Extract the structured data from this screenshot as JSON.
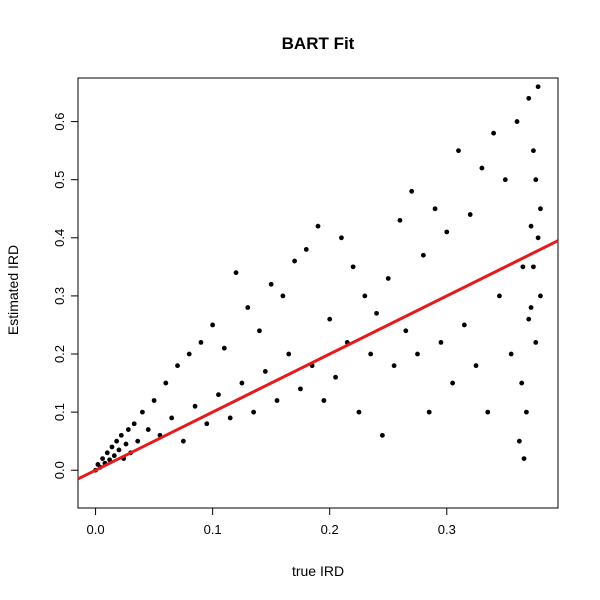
{
  "chart_data": {
    "type": "scatter",
    "title": "BART Fit",
    "xlabel": "true IRD",
    "ylabel": "Estimated IRD",
    "xlim": [
      -0.015,
      0.395
    ],
    "ylim": [
      -0.065,
      0.675
    ],
    "x_ticks": [
      0.0,
      0.1,
      0.2,
      0.3
    ],
    "y_ticks": [
      0.0,
      0.1,
      0.2,
      0.3,
      0.4,
      0.5,
      0.6
    ],
    "x_tick_labels": [
      "0.0",
      "0.1",
      "0.2",
      "0.3"
    ],
    "y_tick_labels": [
      "0.0",
      "0.1",
      "0.2",
      "0.3",
      "0.4",
      "0.5",
      "0.6"
    ],
    "grid": false,
    "point_color": "#000000",
    "fit_line": {
      "color": "#e41a1c",
      "intercept": 0.0,
      "slope": 1.0
    },
    "series": [
      {
        "points": [
          [
            0.0,
            0.0
          ],
          [
            0.002,
            0.01
          ],
          [
            0.004,
            0.005
          ],
          [
            0.006,
            0.02
          ],
          [
            0.008,
            0.012
          ],
          [
            0.01,
            0.03
          ],
          [
            0.012,
            0.018
          ],
          [
            0.014,
            0.04
          ],
          [
            0.016,
            0.025
          ],
          [
            0.018,
            0.05
          ],
          [
            0.02,
            0.035
          ],
          [
            0.022,
            0.06
          ],
          [
            0.024,
            0.02
          ],
          [
            0.026,
            0.045
          ],
          [
            0.028,
            0.07
          ],
          [
            0.03,
            0.03
          ],
          [
            0.033,
            0.08
          ],
          [
            0.036,
            0.05
          ],
          [
            0.04,
            0.1
          ],
          [
            0.045,
            0.07
          ],
          [
            0.05,
            0.12
          ],
          [
            0.055,
            0.06
          ],
          [
            0.06,
            0.15
          ],
          [
            0.065,
            0.09
          ],
          [
            0.07,
            0.18
          ],
          [
            0.075,
            0.05
          ],
          [
            0.08,
            0.2
          ],
          [
            0.085,
            0.11
          ],
          [
            0.09,
            0.22
          ],
          [
            0.095,
            0.08
          ],
          [
            0.1,
            0.25
          ],
          [
            0.105,
            0.13
          ],
          [
            0.11,
            0.21
          ],
          [
            0.115,
            0.09
          ],
          [
            0.12,
            0.34
          ],
          [
            0.125,
            0.15
          ],
          [
            0.13,
            0.28
          ],
          [
            0.135,
            0.1
          ],
          [
            0.14,
            0.24
          ],
          [
            0.145,
            0.17
          ],
          [
            0.15,
            0.32
          ],
          [
            0.155,
            0.12
          ],
          [
            0.16,
            0.3
          ],
          [
            0.165,
            0.2
          ],
          [
            0.17,
            0.36
          ],
          [
            0.175,
            0.14
          ],
          [
            0.18,
            0.38
          ],
          [
            0.185,
            0.18
          ],
          [
            0.19,
            0.42
          ],
          [
            0.195,
            0.12
          ],
          [
            0.2,
            0.26
          ],
          [
            0.205,
            0.16
          ],
          [
            0.21,
            0.4
          ],
          [
            0.215,
            0.22
          ],
          [
            0.22,
            0.35
          ],
          [
            0.225,
            0.1
          ],
          [
            0.23,
            0.3
          ],
          [
            0.235,
            0.2
          ],
          [
            0.24,
            0.27
          ],
          [
            0.245,
            0.06
          ],
          [
            0.25,
            0.33
          ],
          [
            0.255,
            0.18
          ],
          [
            0.26,
            0.43
          ],
          [
            0.265,
            0.24
          ],
          [
            0.27,
            0.48
          ],
          [
            0.275,
            0.2
          ],
          [
            0.28,
            0.37
          ],
          [
            0.285,
            0.1
          ],
          [
            0.29,
            0.45
          ],
          [
            0.295,
            0.22
          ],
          [
            0.3,
            0.41
          ],
          [
            0.305,
            0.15
          ],
          [
            0.31,
            0.55
          ],
          [
            0.315,
            0.25
          ],
          [
            0.32,
            0.44
          ],
          [
            0.325,
            0.18
          ],
          [
            0.33,
            0.52
          ],
          [
            0.335,
            0.1
          ],
          [
            0.34,
            0.58
          ],
          [
            0.345,
            0.3
          ],
          [
            0.35,
            0.5
          ],
          [
            0.355,
            0.2
          ],
          [
            0.36,
            0.6
          ],
          [
            0.365,
            0.35
          ],
          [
            0.37,
            0.64
          ],
          [
            0.372,
            0.28
          ],
          [
            0.374,
            0.55
          ],
          [
            0.376,
            0.22
          ],
          [
            0.378,
            0.66
          ],
          [
            0.38,
            0.3
          ],
          [
            0.38,
            0.45
          ],
          [
            0.378,
            0.4
          ],
          [
            0.376,
            0.5
          ],
          [
            0.374,
            0.35
          ],
          [
            0.372,
            0.42
          ],
          [
            0.37,
            0.26
          ],
          [
            0.368,
            0.1
          ],
          [
            0.366,
            0.02
          ],
          [
            0.364,
            0.15
          ],
          [
            0.362,
            0.05
          ]
        ]
      }
    ]
  }
}
